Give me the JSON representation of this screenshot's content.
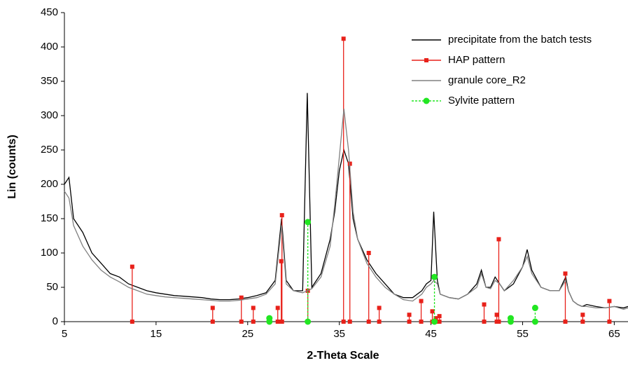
{
  "chart_data": {
    "type": "line",
    "xlabel": "2-Theta Scale",
    "ylabel": "Lin (counts)",
    "xlim": [
      5,
      66.5
    ],
    "ylim": [
      0,
      450
    ],
    "xticks": [
      5,
      15,
      25,
      35,
      45,
      55,
      65
    ],
    "yticks": [
      0,
      50,
      100,
      150,
      200,
      250,
      300,
      350,
      400,
      450
    ],
    "legend": "upper right",
    "x": [
      5,
      5.5,
      6,
      7,
      8,
      9,
      10,
      11,
      12,
      13,
      14,
      15,
      16,
      17,
      18,
      19,
      20,
      21,
      22,
      23,
      24,
      25,
      26,
      27,
      28,
      28.7,
      29.2,
      30,
      31,
      31.5,
      32,
      33,
      34,
      34.5,
      35,
      35.5,
      36,
      36.5,
      37,
      38,
      39,
      40,
      41,
      42,
      43,
      44,
      44.5,
      45,
      45.3,
      45.7,
      46,
      47,
      48,
      49,
      50,
      50.5,
      51,
      51.5,
      52,
      52.5,
      53,
      54,
      55,
      55.5,
      56,
      57,
      58,
      59,
      59.7,
      60,
      60.5,
      61,
      61.5,
      62,
      63,
      64,
      65,
      66,
      66.5
    ],
    "series": [
      {
        "name": "precipitate from the batch tests",
        "color": "#000000",
        "type": "line",
        "values": [
          200,
          210,
          150,
          130,
          100,
          85,
          70,
          65,
          55,
          50,
          45,
          42,
          40,
          38,
          37,
          36,
          35,
          33,
          32,
          32,
          33,
          35,
          38,
          42,
          60,
          150,
          60,
          45,
          45,
          333,
          50,
          70,
          120,
          160,
          220,
          250,
          230,
          150,
          120,
          90,
          70,
          55,
          40,
          35,
          35,
          45,
          55,
          60,
          160,
          60,
          40,
          35,
          33,
          40,
          55,
          75,
          50,
          50,
          65,
          55,
          45,
          55,
          80,
          105,
          75,
          50,
          45,
          45,
          65,
          45,
          30,
          25,
          22,
          25,
          22,
          20,
          22,
          20,
          22
        ]
      },
      {
        "name": "HAP pattern",
        "color": "#e8211a",
        "type": "sticks",
        "marker": "square",
        "linestyle": "solid",
        "x": [
          12.4,
          21.18,
          24.31,
          25.61,
          28.28,
          28.66,
          28.74,
          31.56,
          35.46,
          36.15,
          38.21,
          39.35,
          42.63,
          43.93,
          45.15,
          45.53,
          45.92,
          50.8,
          52.18,
          52.4,
          59.66,
          61.56,
          64.47
        ],
        "values": [
          80,
          20,
          35,
          20,
          20,
          88,
          155,
          45,
          412,
          230,
          100,
          20,
          10,
          30,
          15,
          5,
          8,
          25,
          10,
          120,
          70,
          10,
          30
        ]
      },
      {
        "name": "granule core_R2",
        "color": "#808080",
        "type": "line",
        "values": [
          190,
          180,
          140,
          110,
          90,
          75,
          65,
          58,
          50,
          45,
          40,
          38,
          36,
          35,
          34,
          33,
          32,
          31,
          30,
          30,
          31,
          33,
          35,
          40,
          55,
          140,
          55,
          45,
          42,
          45,
          48,
          65,
          110,
          170,
          240,
          310,
          250,
          160,
          120,
          85,
          65,
          50,
          40,
          32,
          30,
          40,
          50,
          55,
          60,
          55,
          40,
          35,
          33,
          40,
          50,
          70,
          50,
          48,
          60,
          55,
          45,
          60,
          80,
          95,
          70,
          50,
          45,
          45,
          60,
          45,
          30,
          25,
          22,
          22,
          20,
          20,
          22,
          18,
          20
        ]
      },
      {
        "name": "Sylvite pattern",
        "color": "#22e622",
        "type": "sticks",
        "marker": "circle",
        "linestyle": "dashed",
        "x": [
          27.37,
          31.56,
          45.38,
          53.7,
          56.37
        ],
        "values": [
          5,
          145,
          65,
          5,
          20
        ]
      }
    ]
  }
}
